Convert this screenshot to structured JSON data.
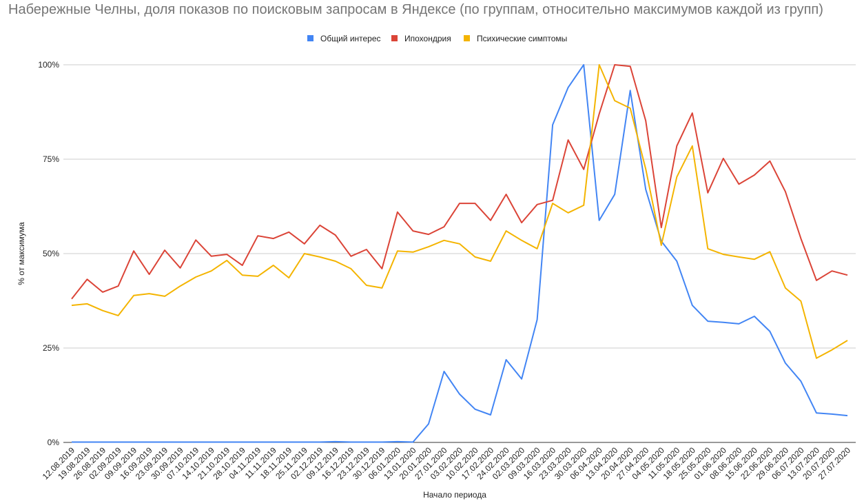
{
  "chart_data": {
    "type": "line",
    "title": "Набережные Челны, доля показов по поисковым запросам в Яндексе (по группам, относительно максимумов каждой из групп)",
    "xlabel": "Начало периода",
    "ylabel": "% от максимума",
    "ylim": [
      0,
      100
    ],
    "yticks": [
      "0%",
      "25%",
      "50%",
      "75%",
      "100%"
    ],
    "ytick_values": [
      0,
      25,
      50,
      75,
      100
    ],
    "grid": true,
    "legend_position": "top",
    "x": [
      "12.08.2019",
      "19.08.2019",
      "26.08.2019",
      "02.09.2019",
      "09.09.2019",
      "16.09.2019",
      "23.09.2019",
      "30.09.2019",
      "07.10.2019",
      "14.10.2019",
      "21.10.2019",
      "28.10.2019",
      "04.11.2019",
      "11.11.2019",
      "18.11.2019",
      "25.11.2019",
      "02.12.2019",
      "09.12.2019",
      "16.12.2019",
      "23.12.2019",
      "30.12.2019",
      "06.01.2020",
      "13.01.2020",
      "20.01.2020",
      "27.01.2020",
      "03.02.2020",
      "10.02.2020",
      "17.02.2020",
      "24.02.2020",
      "02.03.2020",
      "09.03.2020",
      "16.03.2020",
      "23.03.2020",
      "30.03.2020",
      "06.04.2020",
      "13.04.2020",
      "20.04.2020",
      "27.04.2020",
      "04.05.2020",
      "11.05.2020",
      "18.05.2020",
      "25.05.2020",
      "01.06.2020",
      "08.06.2020",
      "15.06.2020",
      "22.06.2020",
      "29.06.2020",
      "06.07.2020",
      "13.07.2020",
      "20.07.2020",
      "27.07.2020"
    ],
    "series": [
      {
        "name": "Общий интерес",
        "color": "#4285f4",
        "values": [
          0.1,
          0.1,
          0.1,
          0.1,
          0.1,
          0.1,
          0.1,
          0.1,
          0.1,
          0.1,
          0.1,
          0.1,
          0.1,
          0.1,
          0.1,
          0.1,
          0.1,
          0.2,
          0.1,
          0.1,
          0.1,
          0.2,
          0.1,
          4.9,
          18.8,
          12.8,
          8.8,
          7.3,
          21.9,
          16.8,
          32.5,
          84.1,
          94.0,
          100,
          58.8,
          65.7,
          93.2,
          67.0,
          53.3,
          48.0,
          36.3,
          32.1,
          31.8,
          31.4,
          33.4,
          29.4,
          21.0,
          16.2,
          7.8,
          7.5,
          7.1
        ]
      },
      {
        "name": "Ипохондрия",
        "color": "#db4437",
        "values": [
          38.0,
          43.2,
          39.8,
          41.4,
          50.7,
          44.5,
          50.9,
          46.2,
          53.6,
          49.3,
          49.8,
          46.9,
          54.7,
          54.0,
          55.7,
          52.6,
          57.5,
          54.9,
          49.3,
          51.1,
          46.0,
          61.0,
          56.0,
          55.1,
          57.1,
          63.3,
          63.3,
          58.8,
          65.7,
          58.2,
          63.0,
          64.1,
          80.1,
          72.3,
          87.0,
          100,
          99.6,
          85.2,
          56.9,
          78.5,
          87.2,
          66.1,
          75.2,
          68.4,
          70.8,
          74.5,
          66.4,
          54.0,
          42.9,
          45.4,
          44.3
        ]
      },
      {
        "name": "Психические симптомы",
        "color": "#f4b400",
        "values": [
          36.3,
          36.7,
          34.9,
          33.6,
          38.9,
          39.4,
          38.7,
          41.4,
          43.8,
          45.4,
          48.2,
          44.3,
          44.0,
          46.9,
          43.6,
          50.0,
          49.1,
          48.0,
          46.0,
          41.6,
          40.9,
          50.7,
          50.4,
          51.8,
          53.5,
          52.6,
          49.1,
          48.0,
          56.0,
          53.5,
          51.3,
          63.3,
          60.8,
          62.8,
          100,
          90.5,
          88.5,
          72.4,
          52.2,
          70.3,
          78.5,
          51.3,
          49.8,
          49.1,
          48.5,
          50.5,
          40.9,
          37.4,
          22.3,
          24.5,
          27.0
        ]
      }
    ]
  }
}
